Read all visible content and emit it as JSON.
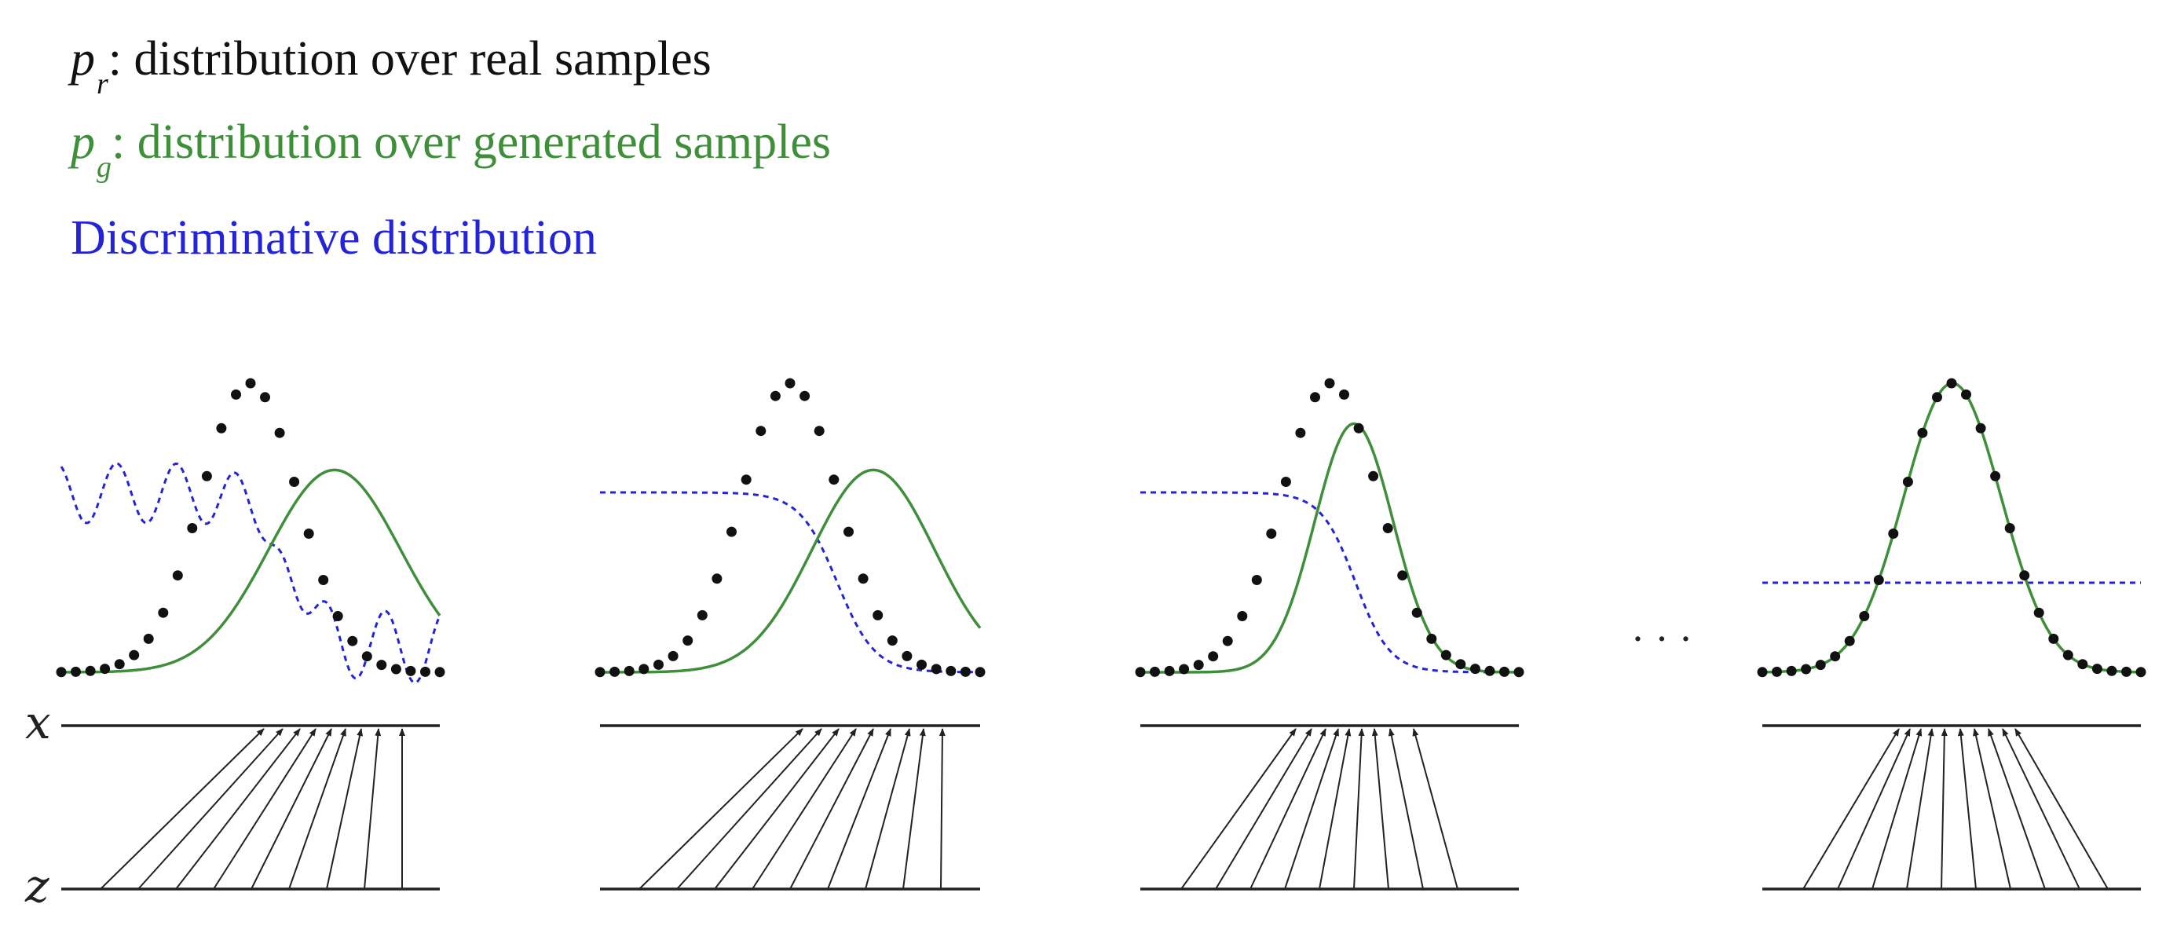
{
  "legend": {
    "real": {
      "symbol": "p",
      "subscript": "r",
      "text": ": distribution over real samples"
    },
    "generated": {
      "symbol": "p",
      "subscript": "g",
      "text": ": distribution over generated samples"
    },
    "discriminative": {
      "text": "Discriminative distribution"
    }
  },
  "axes": {
    "x_label": "x",
    "z_label": "z"
  },
  "ellipsis": "· · ·",
  "colors": {
    "real": "#111111",
    "generated": "#3f8f3a",
    "discriminative": "#2323d8",
    "axis": "#222222"
  }
}
